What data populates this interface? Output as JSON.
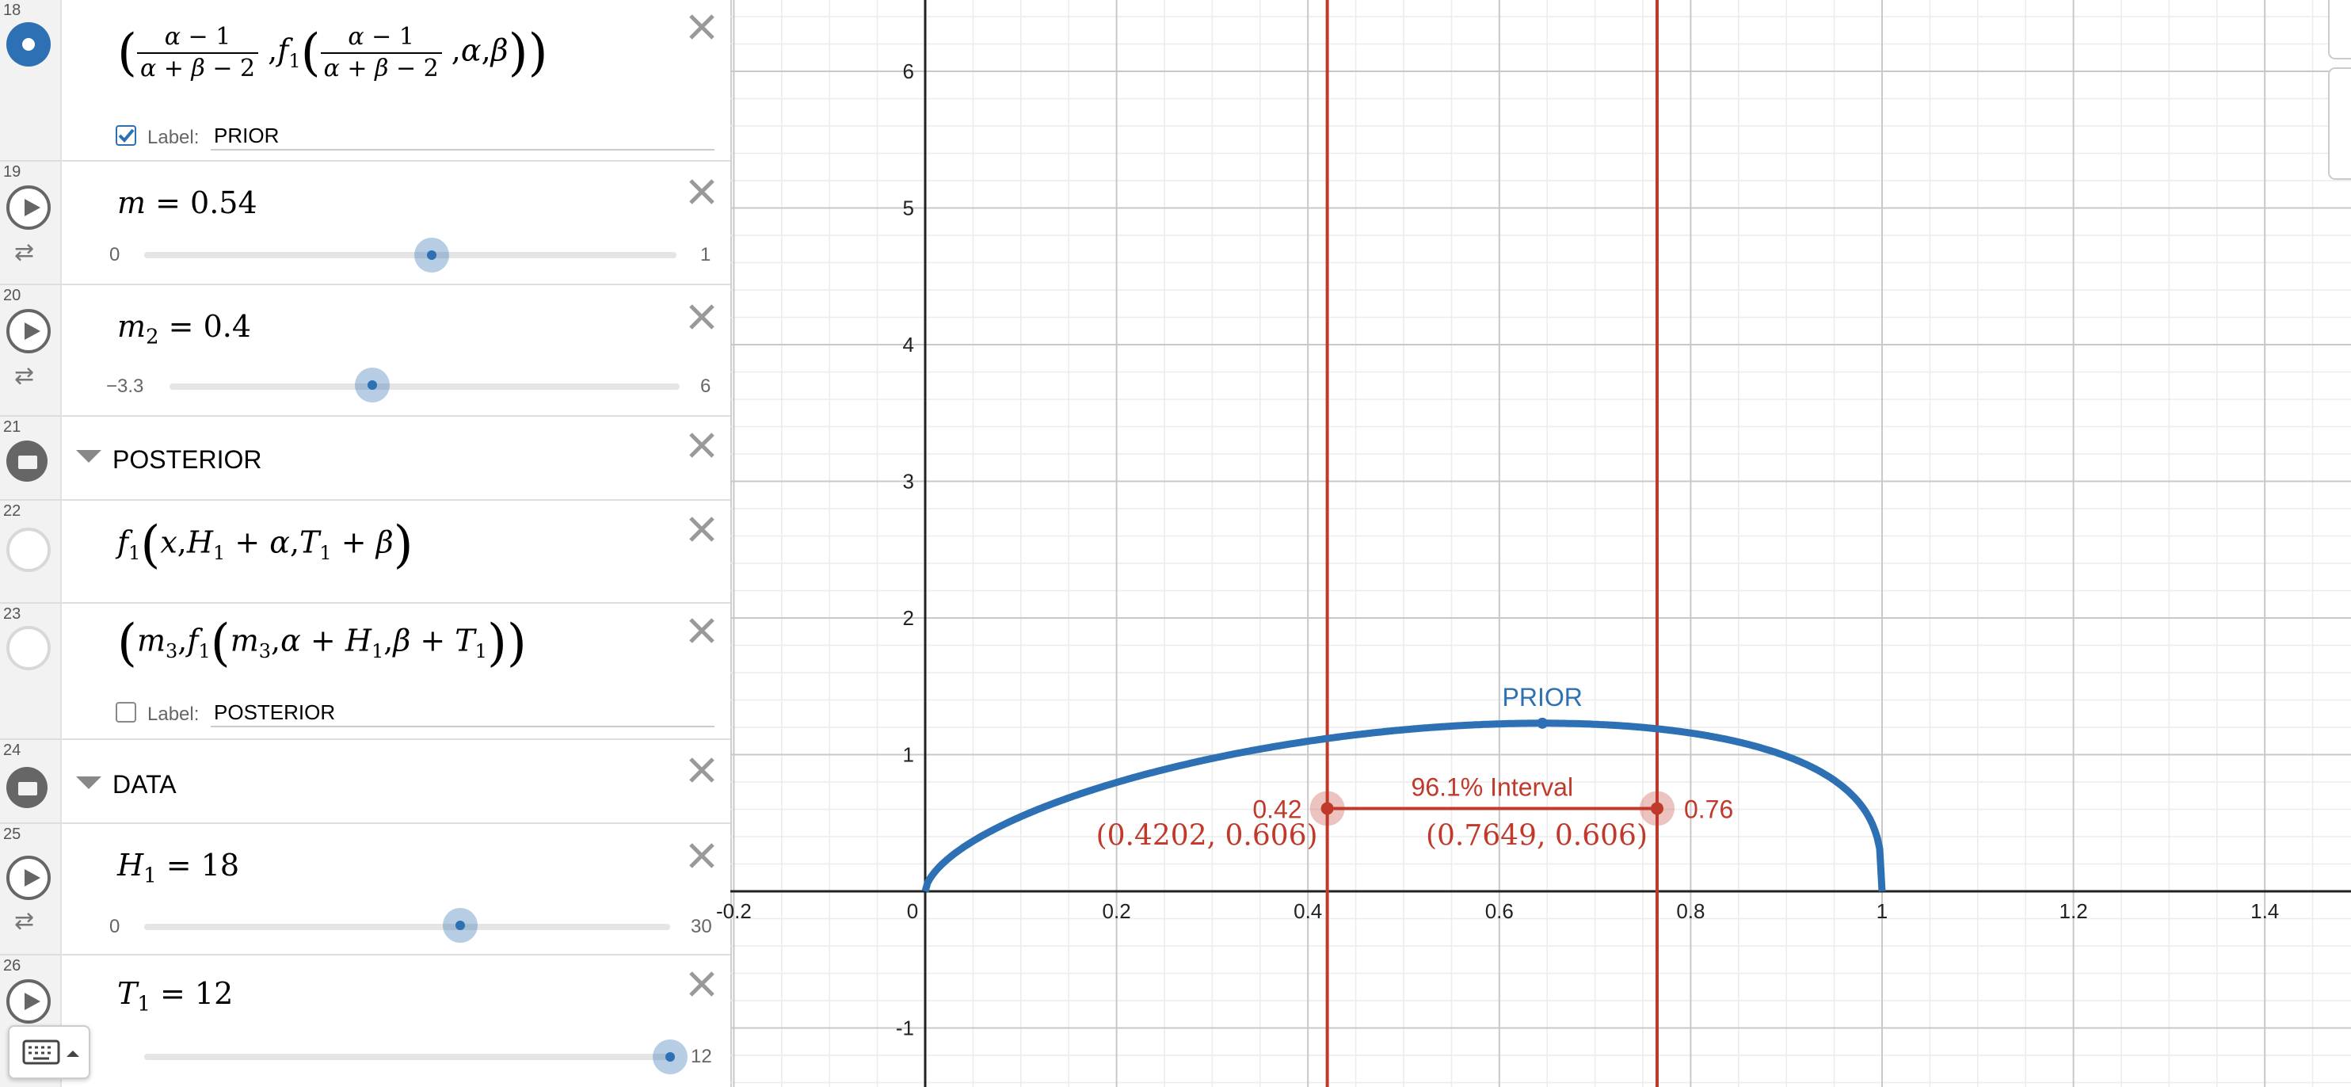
{
  "expressions": [
    {
      "index": "18",
      "type": "point",
      "label_checked": true,
      "label_prefix": "Label:",
      "label_value": "PRIOR"
    },
    {
      "index": "19",
      "type": "slider",
      "var": "m",
      "sub": "",
      "value": "0.54",
      "min": "0",
      "max": "1",
      "fraction": 0.54
    },
    {
      "index": "20",
      "type": "slider",
      "var": "m",
      "sub": "2",
      "value": "0.4",
      "min": "−3.3",
      "max": "6",
      "fraction": 0.398
    },
    {
      "index": "21",
      "type": "folder",
      "title": "POSTERIOR"
    },
    {
      "index": "22",
      "type": "function"
    },
    {
      "index": "23",
      "type": "point",
      "label_checked": false,
      "label_prefix": "Label:",
      "label_value": "POSTERIOR"
    },
    {
      "index": "24",
      "type": "folder",
      "title": "DATA"
    },
    {
      "index": "25",
      "type": "slider",
      "var": "H",
      "sub": "1",
      "value": "18",
      "min": "0",
      "max": "30",
      "fraction": 0.6
    },
    {
      "index": "26",
      "type": "slider",
      "var": "T",
      "sub": "1",
      "value": "12",
      "min": "",
      "max": "12",
      "fraction": 1.0
    }
  ],
  "graph": {
    "x_ticks": [
      "-0.2",
      "0",
      "0.2",
      "0.4",
      "0.6",
      "0.8",
      "1",
      "1.2",
      "1.4"
    ],
    "y_ticks": [
      "-1",
      "1",
      "2",
      "3",
      "4",
      "5",
      "6"
    ],
    "curve_label": "PRIOR",
    "interval_label": "96.1% Interval",
    "left_value": "0.42",
    "right_value": "0.76",
    "left_point": "(0.4202, 0.606)",
    "right_point": "(0.7649, 0.606)",
    "vlines_x": [
      0.4202,
      0.7649
    ],
    "interval_y": 0.606,
    "peak": {
      "x": 0.645,
      "y": 1.23
    },
    "colors": {
      "curve": "#2d70b3",
      "interval": "#c0392b"
    }
  }
}
